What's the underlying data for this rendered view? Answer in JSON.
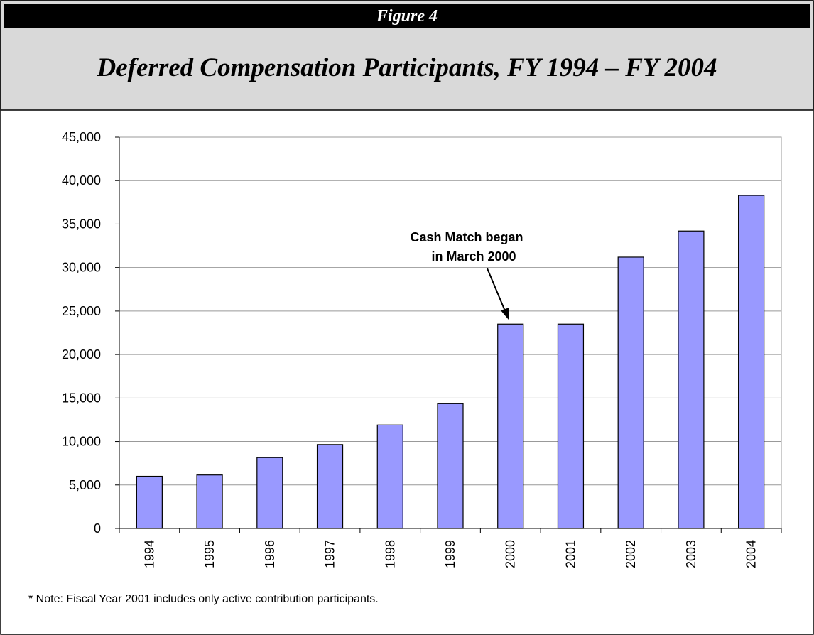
{
  "chart_data": {
    "type": "bar",
    "figure_label": "Figure 4",
    "title": "Deferred Compensation Participants, FY 1994 – FY 2004",
    "categories": [
      "1994",
      "1995",
      "1996",
      "1997",
      "1998",
      "1999",
      "2000",
      "2001",
      "2002",
      "2003",
      "2004"
    ],
    "values": [
      6000,
      6150,
      8150,
      9650,
      11900,
      14350,
      23500,
      23500,
      31200,
      34200,
      38300
    ],
    "color": "#9999ff",
    "ylim": [
      0,
      45000
    ],
    "yticks": [
      0,
      {
        "value": 5000,
        "label": "5,000"
      },
      {
        "value": 10000,
        "label": "10,000"
      },
      {
        "value": 15000,
        "label": "15,000"
      },
      {
        "value": 20000,
        "label": "20,000"
      },
      {
        "value": 25000,
        "label": "25,000"
      },
      {
        "value": 30000,
        "label": "30,000"
      },
      {
        "value": 35000,
        "label": "35,000"
      },
      {
        "value": 40000,
        "label": "40,000"
      },
      {
        "value": 45000,
        "label": "45,000"
      }
    ],
    "grid": true,
    "annotation": [
      "Cash Match began",
      "in March 2000"
    ],
    "note": "* Note: Fiscal Year 2001 includes only active contribution participants."
  }
}
